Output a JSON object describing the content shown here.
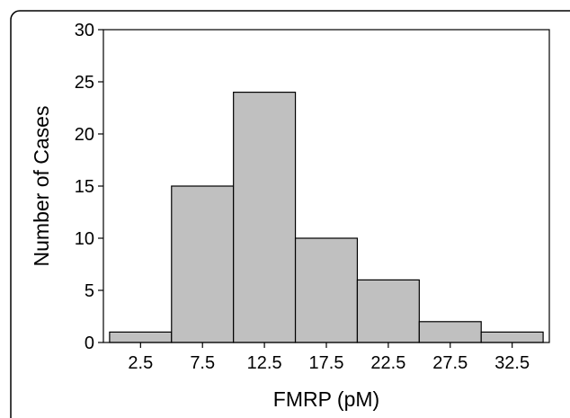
{
  "chart_data": {
    "type": "bar",
    "title": "",
    "xlabel": "FMRP (pM)",
    "ylabel": "Number of Cases",
    "categories": [
      "2.5",
      "7.5",
      "12.5",
      "17.5",
      "22.5",
      "27.5",
      "32.5"
    ],
    "x": [
      2.5,
      7.5,
      12.5,
      17.5,
      22.5,
      27.5,
      32.5
    ],
    "bin_width": 5,
    "values": [
      1,
      15,
      24,
      10,
      6,
      2,
      1
    ],
    "xlim": [
      -0.5,
      35.5
    ],
    "ylim": [
      0,
      30
    ],
    "yticks": [
      0,
      5,
      10,
      15,
      20,
      25,
      30
    ],
    "grid": false,
    "legend": "none",
    "bar_color": "#c0c0c0",
    "edge_color": "#000000"
  }
}
